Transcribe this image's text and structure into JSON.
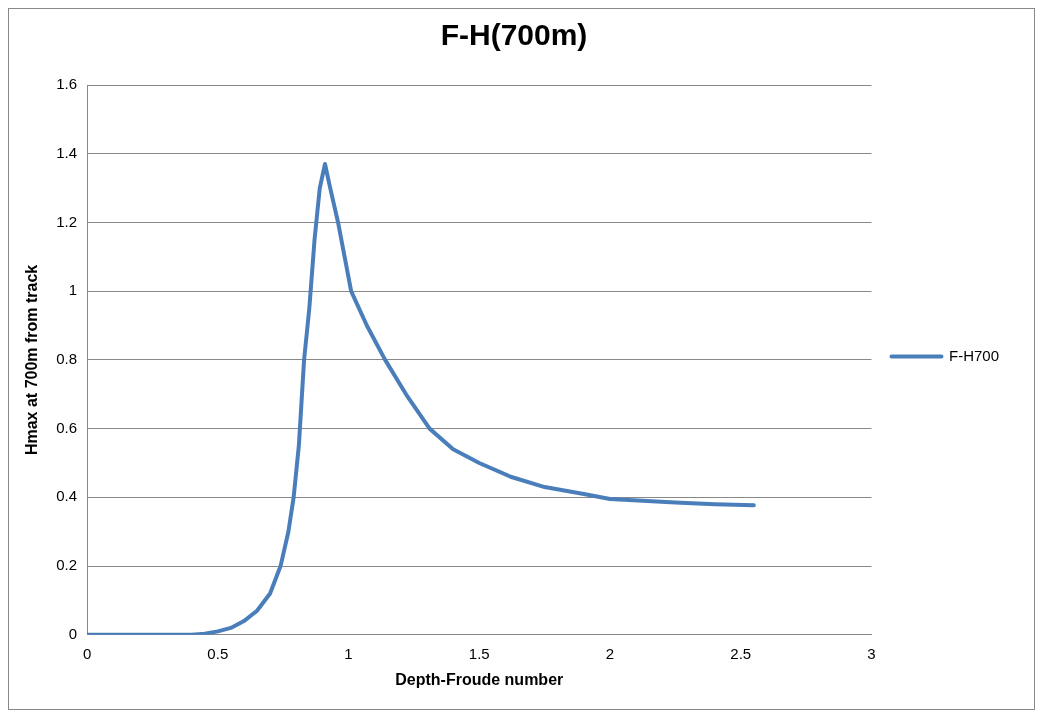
{
  "chart_data": {
    "type": "line",
    "title": "F-H(700m)",
    "xlabel": "Depth-Froude number",
    "ylabel": "Hmax at 700m from track",
    "xlim": [
      0,
      3
    ],
    "xticks": [
      0,
      0.5,
      1,
      1.5,
      2,
      2.5,
      3
    ],
    "ylim": [
      0,
      1.6
    ],
    "yticks": [
      0,
      0.2,
      0.4,
      0.6,
      0.8,
      1,
      1.2,
      1.4,
      1.6
    ],
    "grid": "y",
    "legend": "right",
    "marker": "none",
    "line_style": "solid",
    "series": [
      {
        "name": "F-H700",
        "color": "#4a7ebb",
        "x": [
          0,
          0.2,
          0.4,
          0.45,
          0.5,
          0.55,
          0.6,
          0.65,
          0.7,
          0.74,
          0.77,
          0.79,
          0.81,
          0.83,
          0.85,
          0.87,
          0.89,
          0.91,
          0.93,
          0.96,
          1.01,
          1.07,
          1.14,
          1.22,
          1.31,
          1.4,
          1.5,
          1.62,
          1.75,
          1.9,
          2,
          2.25,
          2.4,
          2.55
        ],
        "values": [
          0,
          0,
          0,
          0.003,
          0.01,
          0.02,
          0.04,
          0.07,
          0.12,
          0.2,
          0.3,
          0.4,
          0.55,
          0.8,
          0.95,
          1.15,
          1.3,
          1.37,
          1.3,
          1.2,
          1.0,
          0.9,
          0.8,
          0.7,
          0.6,
          0.54,
          0.5,
          0.46,
          0.43,
          0.41,
          0.395,
          0.385,
          0.38,
          0.377
        ]
      }
    ]
  }
}
